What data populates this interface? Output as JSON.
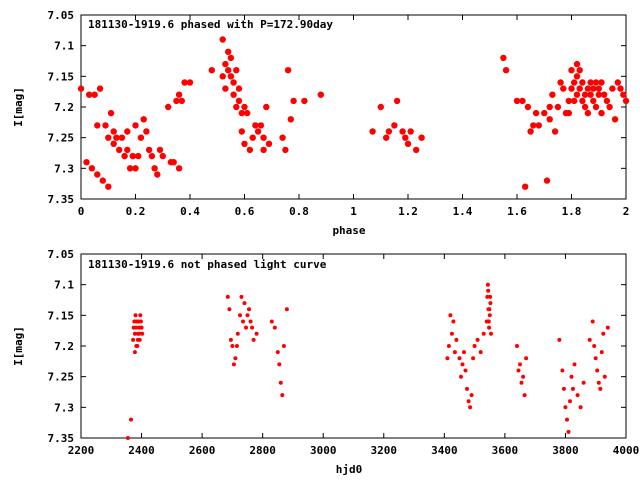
{
  "chart_data": [
    {
      "type": "scatter",
      "title": "181130-1919.6 phased with P=172.90day",
      "xlabel": "phase",
      "ylabel": "I[mag]",
      "xlim": [
        0,
        2
      ],
      "ylim": [
        7.35,
        7.05
      ],
      "y_axis_inverted": true,
      "xticks": [
        "0",
        "0.2",
        "0.4",
        "0.6",
        "0.8",
        "1",
        "1.2",
        "1.4",
        "1.6",
        "1.8",
        "2"
      ],
      "yticks": [
        "7.05",
        "7.1",
        "7.15",
        "7.2",
        "7.25",
        "7.3",
        "7.35"
      ],
      "grid": false,
      "marker_color": "#ff0000",
      "marker": "filled-circle",
      "series": [
        {
          "x": [
            0.0,
            0.02,
            0.03,
            0.04,
            0.05,
            0.06,
            0.06,
            0.07,
            0.08,
            0.09,
            0.1,
            0.1,
            0.11,
            0.12,
            0.12,
            0.13,
            0.14,
            0.15,
            0.16,
            0.17,
            0.17,
            0.18,
            0.19,
            0.2,
            0.2,
            0.21,
            0.22,
            0.23,
            0.24,
            0.25,
            0.26,
            0.27,
            0.28,
            0.29,
            0.3,
            0.32,
            0.33,
            0.34,
            0.35,
            0.36,
            0.36,
            0.37,
            0.38,
            0.4,
            0.48,
            0.52,
            0.52,
            0.53,
            0.53,
            0.54,
            0.54,
            0.55,
            0.55,
            0.56,
            0.56,
            0.57,
            0.57,
            0.58,
            0.58,
            0.59,
            0.59,
            0.6,
            0.6,
            0.61,
            0.62,
            0.63,
            0.64,
            0.65,
            0.66,
            0.67,
            0.67,
            0.68,
            0.69,
            0.74,
            0.75,
            0.76,
            0.77,
            0.78,
            0.82,
            0.88,
            1.07,
            1.1,
            1.12,
            1.13,
            1.15,
            1.16,
            1.18,
            1.19,
            1.2,
            1.21,
            1.23,
            1.25,
            1.55,
            1.56,
            1.6,
            1.62,
            1.63,
            1.64,
            1.65,
            1.66,
            1.67,
            1.68,
            1.7,
            1.71,
            1.72,
            1.72,
            1.73,
            1.74,
            1.75,
            1.76,
            1.77,
            1.78,
            1.79,
            1.79,
            1.8,
            1.8,
            1.81,
            1.81,
            1.82,
            1.82,
            1.82,
            1.83,
            1.83,
            1.84,
            1.84,
            1.85,
            1.85,
            1.86,
            1.86,
            1.87,
            1.87,
            1.88,
            1.88,
            1.89,
            1.89,
            1.9,
            1.9,
            1.91,
            1.91,
            1.92,
            1.93,
            1.94,
            1.95,
            1.96,
            1.97,
            1.98,
            1.99,
            2.0
          ],
          "y": [
            7.17,
            7.29,
            7.18,
            7.3,
            7.18,
            7.23,
            7.31,
            7.17,
            7.32,
            7.23,
            7.25,
            7.33,
            7.21,
            7.26,
            7.24,
            7.25,
            7.27,
            7.25,
            7.28,
            7.27,
            7.24,
            7.3,
            7.28,
            7.23,
            7.3,
            7.28,
            7.25,
            7.22,
            7.24,
            7.27,
            7.28,
            7.3,
            7.31,
            7.27,
            7.28,
            7.2,
            7.29,
            7.29,
            7.19,
            7.3,
            7.18,
            7.19,
            7.16,
            7.16,
            7.14,
            7.09,
            7.15,
            7.13,
            7.17,
            7.11,
            7.14,
            7.12,
            7.15,
            7.16,
            7.18,
            7.14,
            7.2,
            7.17,
            7.19,
            7.24,
            7.21,
            7.2,
            7.26,
            7.21,
            7.27,
            7.25,
            7.23,
            7.24,
            7.23,
            7.25,
            7.27,
            7.2,
            7.26,
            7.25,
            7.27,
            7.14,
            7.22,
            7.19,
            7.19,
            7.18,
            7.24,
            7.2,
            7.25,
            7.24,
            7.23,
            7.19,
            7.24,
            7.25,
            7.26,
            7.24,
            7.27,
            7.25,
            7.12,
            7.14,
            7.19,
            7.19,
            7.33,
            7.2,
            7.24,
            7.23,
            7.21,
            7.23,
            7.21,
            7.32,
            7.2,
            7.22,
            7.18,
            7.24,
            7.2,
            7.16,
            7.17,
            7.21,
            7.19,
            7.21,
            7.14,
            7.17,
            7.16,
            7.19,
            7.13,
            7.15,
            7.18,
            7.14,
            7.17,
            7.19,
            7.16,
            7.18,
            7.2,
            7.17,
            7.21,
            7.18,
            7.16,
            7.19,
            7.17,
            7.16,
            7.2,
            7.17,
            7.18,
            7.16,
            7.21,
            7.18,
            7.19,
            7.2,
            7.17,
            7.22,
            7.16,
            7.17,
            7.18,
            7.19
          ]
        }
      ]
    },
    {
      "type": "scatter",
      "title": "181130-1919.6 not phased light curve",
      "xlabel": "hjd0",
      "ylabel": "I[mag]",
      "xlim": [
        2200,
        4000
      ],
      "ylim": [
        7.35,
        7.05
      ],
      "y_axis_inverted": true,
      "xticks": [
        "2200",
        "2400",
        "2600",
        "2800",
        "3000",
        "3200",
        "3400",
        "3600",
        "3800",
        "4000"
      ],
      "yticks": [
        "7.05",
        "7.1",
        "7.15",
        "7.2",
        "7.25",
        "7.3",
        "7.35"
      ],
      "grid": false,
      "marker_color": "#ff0000",
      "marker": "small-filled-circle",
      "series": [
        {
          "x": [
            2355,
            2365,
            2372,
            2374,
            2376,
            2378,
            2380,
            2382,
            2384,
            2386,
            2388,
            2390,
            2392,
            2394,
            2396,
            2398,
            2400,
            2402,
            2378,
            2383,
            2388,
            2393,
            2398,
            2685,
            2690,
            2695,
            2700,
            2705,
            2710,
            2715,
            2718,
            2725,
            2730,
            2735,
            2740,
            2745,
            2750,
            2755,
            2760,
            2765,
            2770,
            2780,
            2830,
            2840,
            2850,
            2855,
            2860,
            2865,
            2870,
            2880,
            3410,
            3415,
            3420,
            3425,
            3430,
            3435,
            3440,
            3450,
            3455,
            3460,
            3465,
            3470,
            3475,
            3480,
            3485,
            3490,
            3495,
            3500,
            3510,
            3520,
            3530,
            3540,
            3542,
            3544,
            3546,
            3548,
            3550,
            3552,
            3554,
            3545,
            3547,
            3549,
            3551,
            3640,
            3645,
            3650,
            3655,
            3660,
            3665,
            3670,
            3780,
            3790,
            3795,
            3800,
            3805,
            3810,
            3815,
            3820,
            3825,
            3830,
            3840,
            3850,
            3860,
            3880,
            3890,
            3895,
            3900,
            3905,
            3910,
            3915,
            3920,
            3925,
            3930,
            3940
          ],
          "y": [
            7.35,
            7.32,
            7.19,
            7.17,
            7.16,
            7.18,
            7.15,
            7.17,
            7.16,
            7.2,
            7.18,
            7.16,
            7.17,
            7.19,
            7.15,
            7.16,
            7.17,
            7.18,
            7.21,
            7.2,
            7.19,
            7.18,
            7.17,
            7.12,
            7.14,
            7.19,
            7.2,
            7.23,
            7.22,
            7.2,
            7.18,
            7.15,
            7.12,
            7.16,
            7.13,
            7.17,
            7.15,
            7.14,
            7.16,
            7.17,
            7.19,
            7.18,
            7.16,
            7.17,
            7.21,
            7.23,
            7.26,
            7.28,
            7.2,
            7.14,
            7.22,
            7.2,
            7.15,
            7.18,
            7.16,
            7.21,
            7.19,
            7.22,
            7.25,
            7.23,
            7.21,
            7.24,
            7.27,
            7.29,
            7.3,
            7.28,
            7.22,
            7.2,
            7.19,
            7.21,
            7.18,
            7.16,
            7.12,
            7.1,
            7.14,
            7.17,
            7.15,
            7.13,
            7.18,
            7.11,
            7.16,
            7.14,
            7.12,
            7.2,
            7.24,
            7.23,
            7.26,
            7.25,
            7.28,
            7.22,
            7.19,
            7.24,
            7.27,
            7.3,
            7.32,
            7.34,
            7.29,
            7.25,
            7.27,
            7.23,
            7.28,
            7.3,
            7.26,
            7.19,
            7.16,
            7.2,
            7.22,
            7.24,
            7.26,
            7.27,
            7.21,
            7.18,
            7.25,
            7.17
          ]
        }
      ]
    }
  ]
}
